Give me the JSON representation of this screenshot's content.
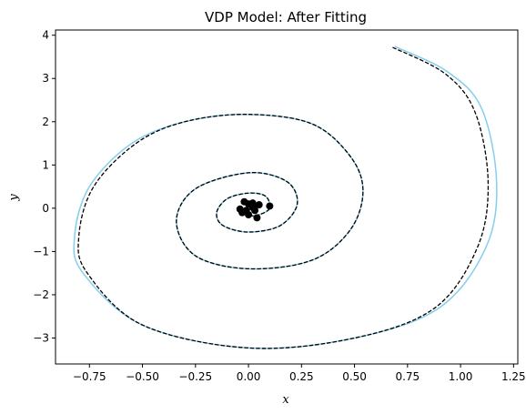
{
  "chart_data": {
    "type": "line",
    "title": "VDP Model: After Fitting",
    "xlabel": "x",
    "ylabel": "y",
    "xlim": [
      -0.91,
      1.27
    ],
    "ylim": [
      -3.6,
      4.12
    ],
    "xticks": [
      -0.75,
      -0.5,
      -0.25,
      0.0,
      0.25,
      0.5,
      0.75,
      1.0,
      1.25
    ],
    "xtick_labels": [
      "−0.75",
      "−0.50",
      "−0.25",
      "0.00",
      "0.25",
      "0.50",
      "0.75",
      "1.00",
      "1.25"
    ],
    "yticks": [
      -3,
      -2,
      -1,
      0,
      1,
      2,
      3,
      4
    ],
    "ytick_labels": [
      "−3",
      "−2",
      "−1",
      "0",
      "1",
      "2",
      "3",
      "4"
    ],
    "grid": false,
    "series": [
      {
        "style": "solid",
        "color": "#87ceeb",
        "points": [
          [
            0.69,
            3.74
          ],
          [
            0.94,
            3.15
          ],
          [
            1.1,
            2.3
          ],
          [
            1.17,
            0.6
          ],
          [
            1.12,
            -0.9
          ],
          [
            0.9,
            -2.3
          ],
          [
            0.5,
            -3.0
          ],
          [
            0.0,
            -3.23
          ],
          [
            -0.5,
            -2.7
          ],
          [
            -0.78,
            -1.5
          ],
          [
            -0.82,
            -0.65
          ],
          [
            -0.75,
            0.5
          ],
          [
            -0.55,
            1.5
          ],
          [
            -0.3,
            2.0
          ],
          [
            0.0,
            2.17
          ],
          [
            0.3,
            1.95
          ],
          [
            0.48,
            1.2
          ],
          [
            0.54,
            0.4
          ],
          [
            0.48,
            -0.5
          ],
          [
            0.3,
            -1.2
          ],
          [
            0.0,
            -1.4
          ],
          [
            -0.25,
            -1.1
          ],
          [
            -0.34,
            -0.3
          ],
          [
            -0.25,
            0.45
          ],
          [
            0.0,
            0.82
          ],
          [
            0.18,
            0.62
          ],
          [
            0.23,
            0.1
          ],
          [
            0.15,
            -0.4
          ],
          [
            0.0,
            -0.55
          ],
          [
            -0.12,
            -0.4
          ],
          [
            -0.15,
            -0.1
          ],
          [
            -0.1,
            0.22
          ],
          [
            0.0,
            0.35
          ],
          [
            0.08,
            0.28
          ],
          [
            0.1,
            0.0
          ],
          [
            0.05,
            -0.15
          ],
          [
            0.0,
            -0.18
          ]
        ]
      },
      {
        "style": "dashed",
        "color": "#000000",
        "points": [
          [
            0.68,
            3.72
          ],
          [
            0.93,
            3.1
          ],
          [
            1.07,
            2.2
          ],
          [
            1.13,
            0.6
          ],
          [
            1.08,
            -0.9
          ],
          [
            0.88,
            -2.3
          ],
          [
            0.5,
            -3.0
          ],
          [
            0.0,
            -3.23
          ],
          [
            -0.5,
            -2.7
          ],
          [
            -0.76,
            -1.5
          ],
          [
            -0.8,
            -0.65
          ],
          [
            -0.73,
            0.5
          ],
          [
            -0.53,
            1.5
          ],
          [
            -0.3,
            2.0
          ],
          [
            0.0,
            2.17
          ],
          [
            0.3,
            1.95
          ],
          [
            0.48,
            1.2
          ],
          [
            0.54,
            0.4
          ],
          [
            0.48,
            -0.5
          ],
          [
            0.3,
            -1.2
          ],
          [
            0.0,
            -1.4
          ],
          [
            -0.25,
            -1.1
          ],
          [
            -0.34,
            -0.3
          ],
          [
            -0.25,
            0.45
          ],
          [
            0.0,
            0.82
          ],
          [
            0.18,
            0.62
          ],
          [
            0.23,
            0.1
          ],
          [
            0.15,
            -0.4
          ],
          [
            0.0,
            -0.55
          ],
          [
            -0.12,
            -0.4
          ],
          [
            -0.15,
            -0.1
          ],
          [
            -0.1,
            0.22
          ],
          [
            0.0,
            0.35
          ],
          [
            0.08,
            0.28
          ],
          [
            0.1,
            0.0
          ],
          [
            0.05,
            -0.15
          ],
          [
            0.0,
            -0.18
          ]
        ]
      }
    ],
    "scatter": {
      "color": "#000000",
      "points": [
        [
          -0.02,
          0.15
        ],
        [
          0.0,
          0.1
        ],
        [
          0.02,
          0.12
        ],
        [
          0.05,
          0.08
        ],
        [
          0.1,
          0.05
        ],
        [
          0.03,
          -0.05
        ],
        [
          -0.04,
          -0.02
        ],
        [
          -0.03,
          -0.1
        ],
        [
          0.0,
          -0.15
        ],
        [
          0.04,
          -0.22
        ],
        [
          -0.01,
          -0.05
        ],
        [
          0.02,
          0.02
        ]
      ]
    }
  }
}
